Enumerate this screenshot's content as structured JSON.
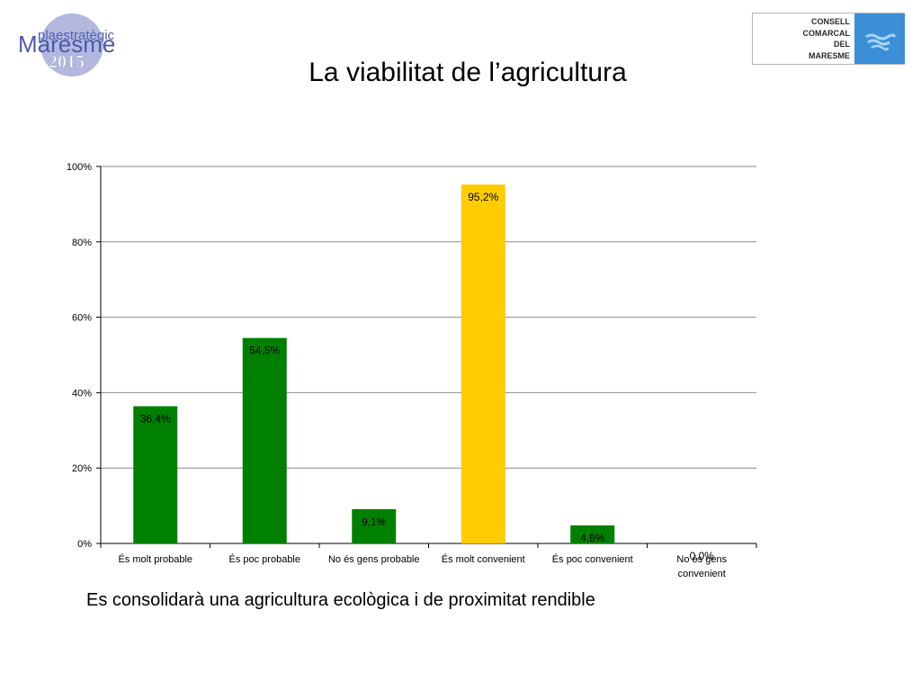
{
  "header": {
    "title": "La viabilitat de l’agricultura",
    "logo_left": {
      "line1": "plaestratègic",
      "line2": "Maresme",
      "line3": "2015"
    },
    "logo_right": {
      "lines": [
        "CONSELL",
        "COMARCAL",
        "DEL",
        "MARESME"
      ]
    }
  },
  "colors": {
    "green": "#008000",
    "yellow": "#FFCC00",
    "grid": "#8c8c8c"
  },
  "chart_data": {
    "type": "bar",
    "categories": [
      "És molt probable",
      "És poc probable",
      "No és gens probable",
      "És molt convenient",
      "És poc convenient",
      "No és gens convenient"
    ],
    "values": [
      36.4,
      54.5,
      9.1,
      95.2,
      4.8,
      0.0
    ],
    "value_labels": [
      "36,4%",
      "54,5%",
      "9,1%",
      "95,2%",
      "4,8%",
      "0,0%"
    ],
    "bar_colors": [
      "#008000",
      "#008000",
      "#008000",
      "#FFCC00",
      "#008000",
      "#008000"
    ],
    "ylim": [
      0,
      100
    ],
    "yticks": [
      0,
      20,
      40,
      60,
      80,
      100
    ],
    "ytick_labels": [
      "0%",
      "20%",
      "40%",
      "60%",
      "80%",
      "100%"
    ],
    "grid": true,
    "legend": "none"
  },
  "footer": {
    "caption": "Es consolidarà una agricultura ecològica i de proximitat rendible"
  }
}
